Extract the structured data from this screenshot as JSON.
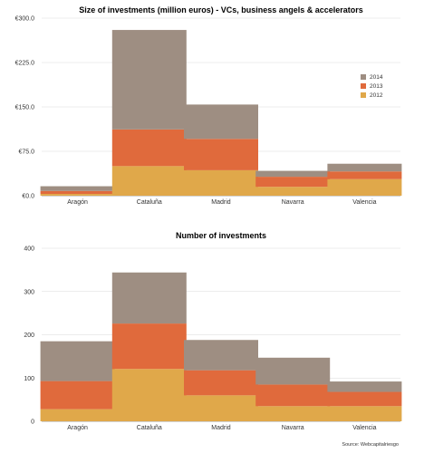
{
  "source": "Source: Webcapitalriesgo",
  "chart_data": [
    {
      "type": "bar",
      "stacked": true,
      "title": "Size of investments (million euros) - VCs, business angels & accelerators",
      "categories": [
        "Aragón",
        "Cataluña",
        "Madrid",
        "Navarra",
        "Valencia"
      ],
      "series": [
        {
          "name": "2012",
          "color": "#e0a84a",
          "values": [
            3,
            50,
            43,
            15,
            28
          ]
        },
        {
          "name": "2013",
          "color": "#e06a3c",
          "values": [
            5,
            62,
            53,
            17,
            13
          ]
        },
        {
          "name": "2014",
          "color": "#9e8e82",
          "values": [
            8,
            168,
            58,
            10,
            13
          ]
        }
      ],
      "yticks": [
        "€0.0",
        "€75.0",
        "€150.0",
        "€225.0",
        "€300.0"
      ],
      "ylim": [
        0,
        300
      ],
      "grid": true,
      "legend": "right"
    },
    {
      "type": "bar",
      "stacked": true,
      "title": "Number of investments",
      "categories": [
        "Aragón",
        "Cataluña",
        "Madrid",
        "Navarra",
        "Valencia"
      ],
      "series": [
        {
          "values": [
            28,
            121,
            60,
            35,
            35
          ]
        },
        {
          "values": [
            65,
            105,
            58,
            50,
            33
          ]
        },
        {
          "values": [
            92,
            118,
            70,
            62,
            24
          ]
        }
      ],
      "yticks": [
        "0",
        "100",
        "200",
        "300",
        "400"
      ],
      "ylim": [
        0,
        400
      ],
      "grid": true
    }
  ]
}
